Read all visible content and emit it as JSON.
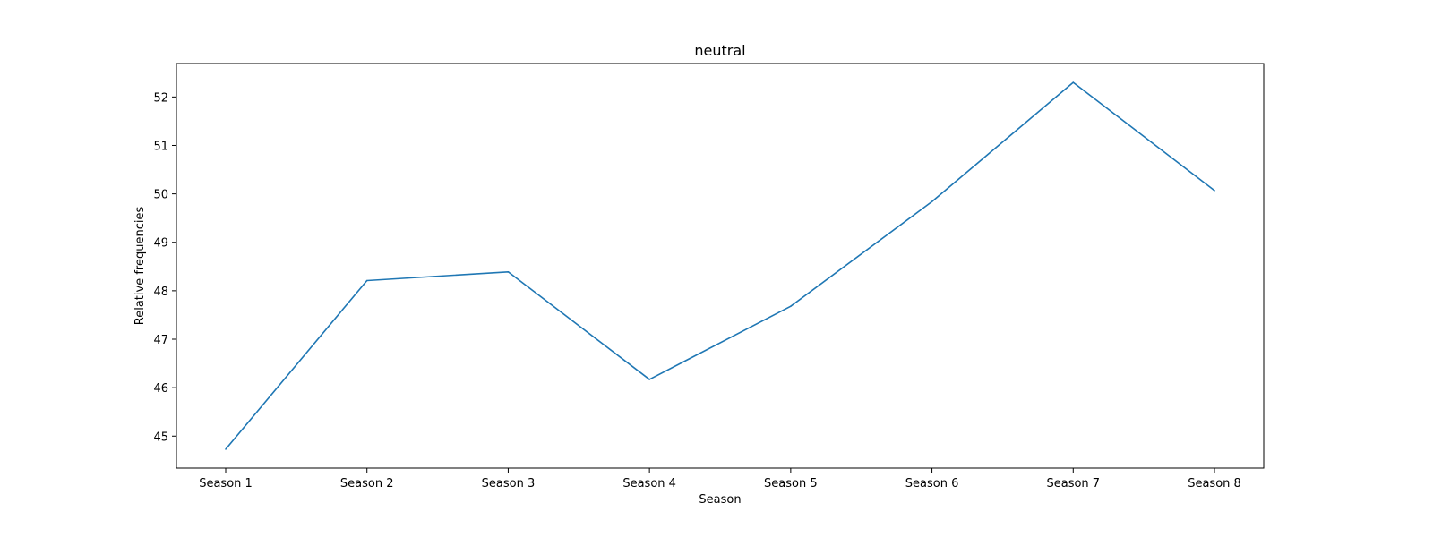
{
  "chart_data": {
    "type": "line",
    "title": "neutral",
    "xlabel": "Season",
    "ylabel": "Relative frequencies",
    "categories": [
      "Season 1",
      "Season 2",
      "Season 3",
      "Season 4",
      "Season 5",
      "Season 6",
      "Season 7",
      "Season 8"
    ],
    "series": [
      {
        "values": [
          44.73,
          48.21,
          48.39,
          46.17,
          47.68,
          49.84,
          52.3,
          50.07
        ],
        "color": "#1f77b4"
      }
    ],
    "yticks": [
      45,
      46,
      47,
      48,
      49,
      50,
      51,
      52
    ],
    "ylim": [
      44.34,
      52.69
    ],
    "grid": false,
    "legend": "none"
  }
}
